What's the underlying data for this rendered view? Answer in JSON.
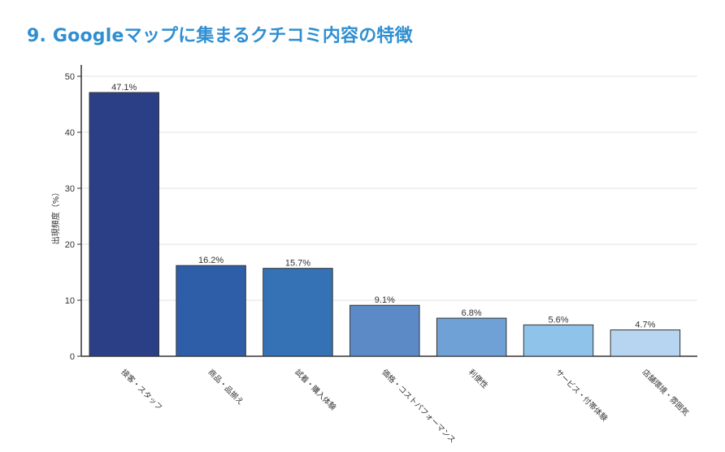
{
  "heading": "9. Googleマップに集まるクチコミ内容の特徴",
  "colors": {
    "heading": "#2f8fd1",
    "bars": [
      "#2b3f86",
      "#2f5ea8",
      "#3572b5",
      "#5b8ac6",
      "#6fa1d6",
      "#8fc3ea",
      "#b7d5f0"
    ]
  },
  "chart_data": {
    "type": "bar",
    "ylabel": "出現頻度（%）",
    "xlabel": "",
    "ylim": [
      0,
      50
    ],
    "yticks": [
      0,
      10,
      20,
      30,
      40,
      50
    ],
    "grid": true,
    "categories": [
      "接客・スタッフ",
      "商品・品揃え",
      "試着・購入体験",
      "価格・コストパフォーマンス",
      "利便性",
      "サービス・付帯体験",
      "店舗環境・雰囲気"
    ],
    "values": [
      47.1,
      16.2,
      15.7,
      9.1,
      6.8,
      5.6,
      4.7
    ],
    "value_labels": [
      "47.1%",
      "16.2%",
      "15.7%",
      "9.1%",
      "6.8%",
      "5.6%",
      "4.7%"
    ]
  }
}
